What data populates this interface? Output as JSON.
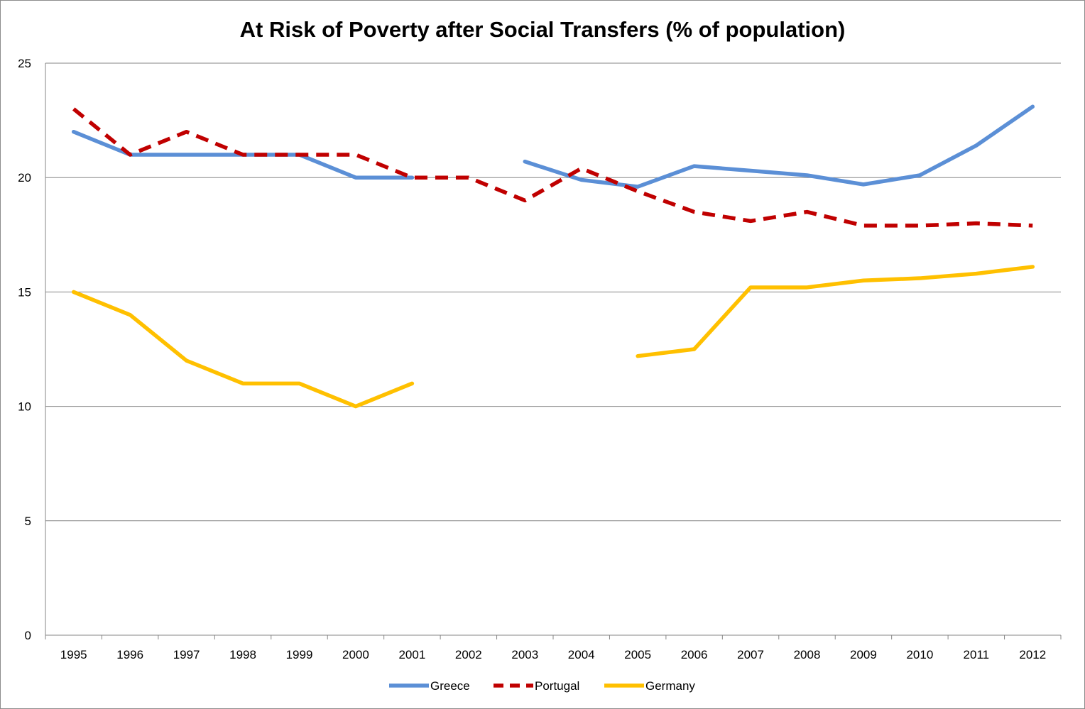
{
  "chart_data": {
    "type": "line",
    "title": "At Risk of Poverty after Social Transfers (% of population)",
    "xlabel": "",
    "ylabel": "",
    "ylim": [
      0,
      25
    ],
    "yticks": [
      0,
      5,
      10,
      15,
      20,
      25
    ],
    "grid": true,
    "legend_position": "bottom",
    "categories": [
      "1995",
      "1996",
      "1997",
      "1998",
      "1999",
      "2000",
      "2001",
      "2002",
      "2003",
      "2004",
      "2005",
      "2006",
      "2007",
      "2008",
      "2009",
      "2010",
      "2011",
      "2012"
    ],
    "series": [
      {
        "name": "Greece",
        "color": "#5b8fd6",
        "dashed": false,
        "values": [
          22,
          21,
          21,
          21,
          21,
          20,
          20,
          null,
          20.7,
          19.9,
          19.6,
          20.5,
          20.3,
          20.1,
          19.7,
          20.1,
          21.4,
          23.1
        ]
      },
      {
        "name": "Portugal",
        "color": "#c00000",
        "dashed": true,
        "values": [
          23,
          21,
          22,
          21,
          21,
          21,
          20,
          20,
          19,
          20.4,
          19.4,
          18.5,
          18.1,
          18.5,
          17.9,
          17.9,
          18,
          17.9
        ]
      },
      {
        "name": "Germany",
        "color": "#ffc000",
        "dashed": false,
        "values": [
          15,
          14,
          12,
          11,
          11,
          10,
          11,
          null,
          null,
          null,
          12.2,
          12.5,
          15.2,
          15.2,
          15.5,
          15.6,
          15.8,
          16.1
        ]
      }
    ]
  }
}
